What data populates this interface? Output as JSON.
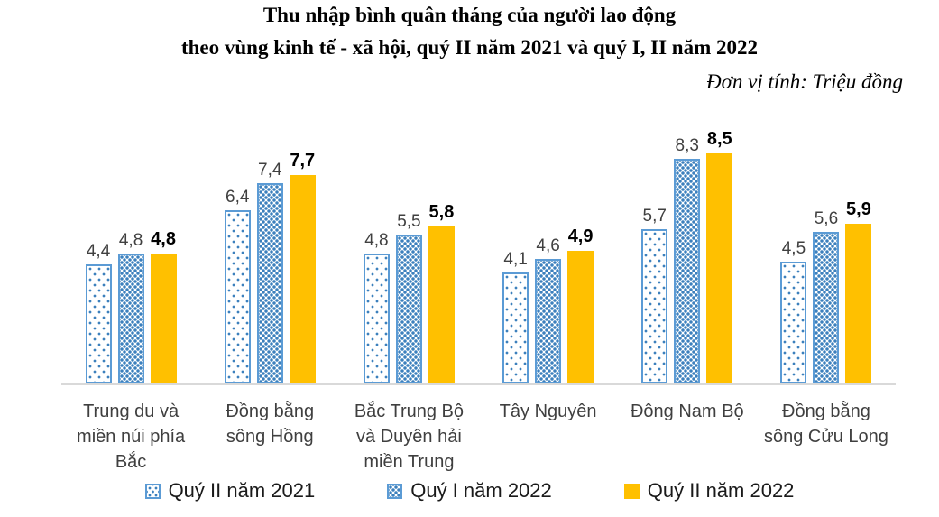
{
  "title": {
    "line1": "Thu nhập bình quân tháng của người lao động",
    "line2": "theo vùng kinh tế - xã hội, quý II năm 2021 và quý I, II năm 2022"
  },
  "unit_label": "Đơn vị tính: Triệu đồng",
  "colors": {
    "bar_border_blue": "#5B9BD5",
    "pattern_dot_blue": "#3C80BD",
    "bar_fill_yellow": "#FFC000",
    "axis_line": "#D9D9D9",
    "value_label": "#404040",
    "value_label_bold": "#000000",
    "category_label": "#3F3F3F"
  },
  "chart_data": {
    "type": "bar",
    "title": "Thu nhập bình quân tháng của người lao động theo vùng kinh tế - xã hội, quý II năm 2021 và quý I, II năm 2022",
    "ylabel": "Triệu đồng",
    "xlabel": "",
    "ylim": [
      0,
      10
    ],
    "grid": false,
    "legend_position": "bottom",
    "decimal_separator": ",",
    "categories": [
      "Trung du và\nmiền núi phía\nBắc",
      "Đồng bằng\nsông Hồng",
      "Bắc Trung Bộ\nvà Duyên hải\nmiền Trung",
      "Tây Nguyên",
      "Đông Nam Bộ",
      "Đồng bằng\nsông Cửu Long"
    ],
    "series": [
      {
        "name": "Quý II năm 2021",
        "style": "style-dots-sparse",
        "values": [
          4.4,
          6.4,
          4.8,
          4.1,
          5.7,
          4.5
        ]
      },
      {
        "name": "Quý I năm 2022",
        "style": "style-dots-dense",
        "values": [
          4.8,
          7.4,
          5.5,
          4.6,
          8.3,
          5.6
        ]
      },
      {
        "name": "Quý II năm 2022",
        "style": "style-solid-yellow",
        "values": [
          4.8,
          7.7,
          5.8,
          4.9,
          8.5,
          5.9
        ]
      }
    ]
  }
}
